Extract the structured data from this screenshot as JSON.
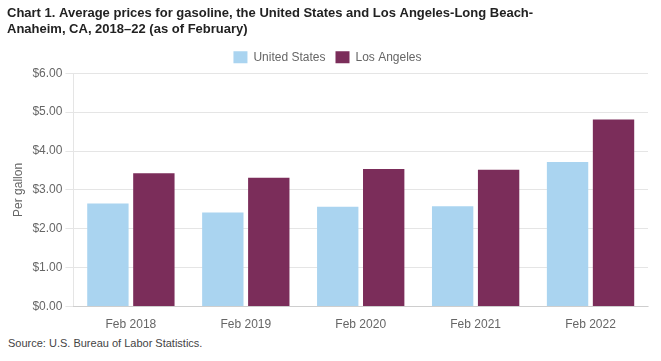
{
  "chart_data": {
    "type": "bar",
    "title": [
      "Chart 1. Average prices for gasoline, the United States and Los Angeles-Long Beach-",
      "Anaheim, CA, 2018–22 (as of February)"
    ],
    "ylabel": "Per gallon",
    "source": "Source: U.S. Bureau of Labor Statistics.",
    "categories": [
      "Feb 2018",
      "Feb 2019",
      "Feb 2020",
      "Feb 2021",
      "Feb 2022"
    ],
    "series": [
      {
        "name": "United States",
        "color": "#aad4f0",
        "values": [
          2.65,
          2.42,
          2.57,
          2.58,
          3.72
        ]
      },
      {
        "name": "Los Angeles",
        "color": "#7b2d5a",
        "values": [
          3.43,
          3.31,
          3.54,
          3.52,
          4.81
        ]
      }
    ],
    "ylim": [
      0,
      6.0
    ],
    "yticks": [
      {
        "value": 0.0,
        "label": "$0.00"
      },
      {
        "value": 1.0,
        "label": "$1.00"
      },
      {
        "value": 2.0,
        "label": "$2.00"
      },
      {
        "value": 3.0,
        "label": "$3.00"
      },
      {
        "value": 4.0,
        "label": "$4.00"
      },
      {
        "value": 5.0,
        "label": "$5.00"
      },
      {
        "value": 6.0,
        "label": "$6.00"
      }
    ],
    "grid": true,
    "legend": "top"
  }
}
